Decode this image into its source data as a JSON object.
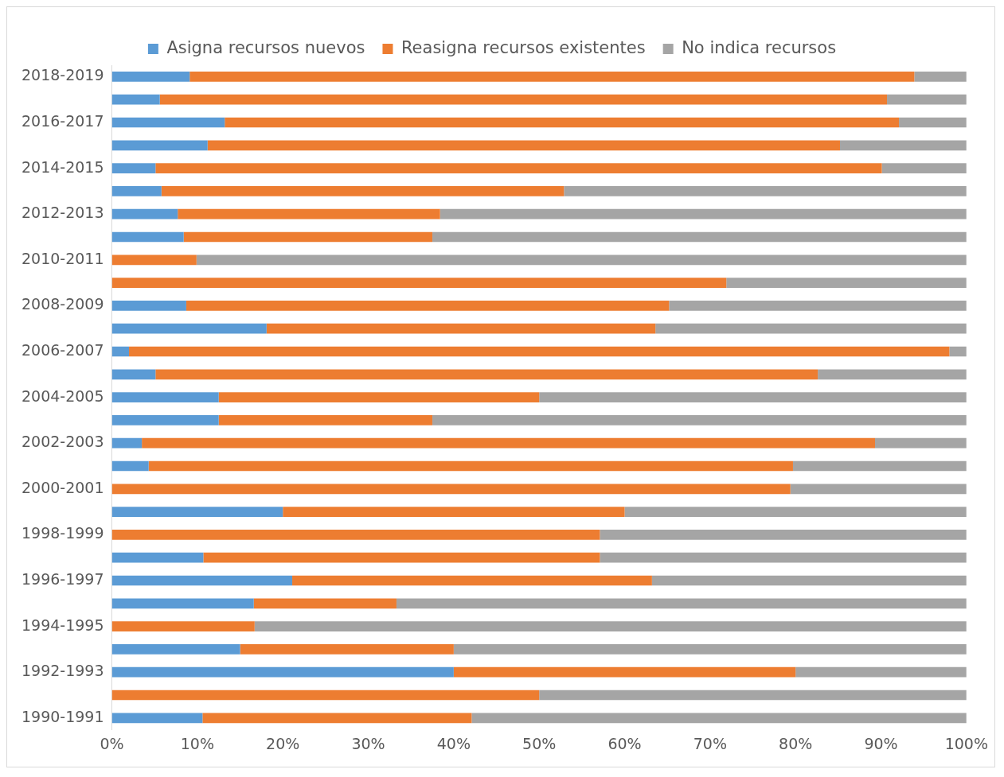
{
  "chart_data": {
    "type": "bar",
    "orientation": "horizontal",
    "stacked": true,
    "legend": "top",
    "grid": false,
    "categories": [
      "2018-2019",
      null,
      "2016-2017",
      null,
      "2014-2015",
      null,
      "2012-2013",
      null,
      "2010-2011",
      null,
      "2008-2009",
      null,
      "2006-2007",
      null,
      "2004-2005",
      null,
      "2002-2003",
      null,
      "2000-2001",
      null,
      "1998-1999",
      null,
      "1996-1997",
      null,
      "1994-1995",
      null,
      "1992-1993",
      null,
      "1990-1991"
    ],
    "xlim": [
      0,
      100
    ],
    "xticks": [
      {
        "value": 0,
        "label": "0%"
      },
      {
        "value": 10,
        "label": "10%"
      },
      {
        "value": 20,
        "label": "20%"
      },
      {
        "value": 30,
        "label": "30%"
      },
      {
        "value": 40,
        "label": "40%"
      },
      {
        "value": 50,
        "label": "50%"
      },
      {
        "value": 60,
        "label": "60%"
      },
      {
        "value": 70,
        "label": "70%"
      },
      {
        "value": 80,
        "label": "80%"
      },
      {
        "value": 90,
        "label": "90%"
      },
      {
        "value": 100,
        "label": "100%"
      }
    ],
    "series": [
      {
        "name": "Asigna recursos nuevos",
        "color": "#5b9bd5",
        "values": [
          9.1,
          5.6,
          13.2,
          11.2,
          5.1,
          5.8,
          7.7,
          8.4,
          0,
          0,
          8.7,
          18.1,
          2,
          5.1,
          12.5,
          12.5,
          3.5,
          4.3,
          0,
          20,
          0,
          10.7,
          21.1,
          16.6,
          0,
          15,
          40,
          0,
          10.6
        ]
      },
      {
        "name": "Reasigna recursos existentes",
        "color": "#ed7d31",
        "values": [
          84.8,
          85.1,
          78.9,
          74,
          85,
          47.1,
          30.7,
          29.1,
          9.9,
          71.9,
          56.5,
          45.5,
          96,
          77.5,
          37.5,
          25,
          85.8,
          75.4,
          79.4,
          40,
          57.1,
          46.4,
          42.1,
          16.7,
          16.7,
          25,
          40,
          50,
          31.5
        ]
      },
      {
        "name": "No indica recursos",
        "color": "#a5a5a5",
        "values": [
          6.1,
          9.3,
          7.9,
          14.8,
          9.9,
          47.1,
          61.6,
          62.5,
          90.1,
          28.1,
          34.8,
          36.4,
          2,
          17.4,
          50,
          62.5,
          10.7,
          20.3,
          20.6,
          40,
          42.9,
          42.9,
          36.8,
          66.7,
          83.3,
          60,
          20,
          50,
          57.9
        ]
      }
    ]
  }
}
